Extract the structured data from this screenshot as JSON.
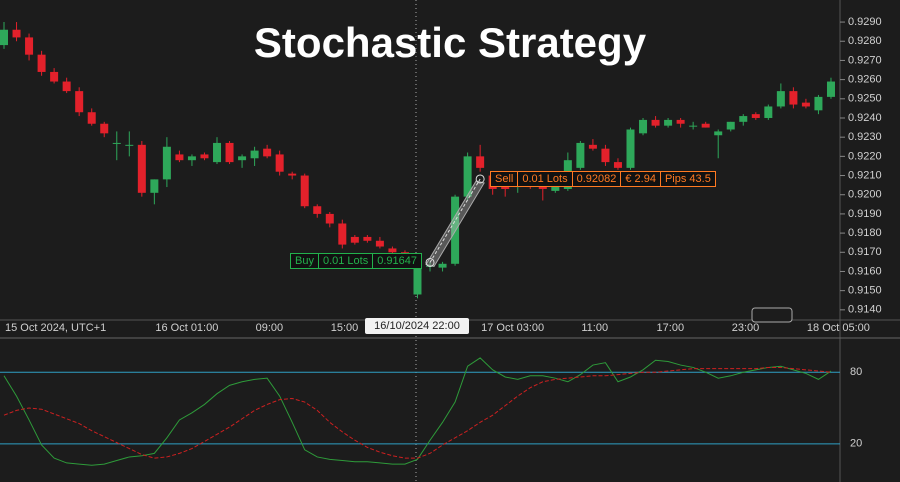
{
  "chart_data": [
    {
      "type": "candlestick",
      "title": "Stochastic Strategy",
      "categories": [
        "15 Oct 2024, UTC+1",
        null,
        null,
        null,
        null,
        null,
        null,
        null,
        null,
        null,
        null,
        null,
        "16 Oct 01:00",
        null,
        null,
        null,
        null,
        null,
        null,
        null,
        "09:00",
        null,
        null,
        null,
        null,
        null,
        "15:00",
        null,
        null,
        null,
        null,
        null,
        null,
        null,
        null,
        null,
        null,
        null,
        "17 Oct 03:00",
        null,
        null,
        null,
        null,
        null,
        null,
        null,
        "11:00",
        null,
        null,
        null,
        null,
        null,
        "17:00",
        null,
        null,
        null,
        null,
        null,
        "23:00",
        null,
        null,
        null,
        null,
        null,
        "18 Oct 05:00",
        null,
        null
      ],
      "open": [
        0.9278,
        0.9286,
        0.9282,
        0.9273,
        0.9264,
        0.9259,
        0.9254,
        0.9243,
        0.9237,
        0.9227,
        0.9226,
        0.9226,
        0.9201,
        0.9208,
        0.9221,
        0.9218,
        0.9221,
        0.9217,
        0.9227,
        0.9218,
        0.9219,
        0.9224,
        0.9221,
        0.9211,
        0.921,
        0.9194,
        0.919,
        0.9185,
        0.9178,
        0.9178,
        0.9176,
        0.9172,
        0.917,
        0.9148,
        0.9163,
        0.9162,
        0.9164,
        0.9199,
        0.922,
        0.921,
        0.9204,
        0.9204,
        0.9206,
        0.9206,
        0.9202,
        0.9203,
        0.9214,
        0.9226,
        0.9224,
        0.9217,
        0.9214,
        0.9232,
        0.9239,
        0.9236,
        0.9239,
        0.9236,
        0.9237,
        0.9231,
        0.9234,
        0.9238,
        0.9242,
        0.924,
        0.9246,
        0.9254,
        0.9248,
        0.9244,
        0.9251
      ],
      "high": [
        0.929,
        0.929,
        0.9284,
        0.9275,
        0.9266,
        0.9261,
        0.9256,
        0.9245,
        0.9238,
        0.9233,
        0.9233,
        0.9228,
        0.9208,
        0.923,
        0.9223,
        0.9221,
        0.9222,
        0.923,
        0.9228,
        0.9221,
        0.9225,
        0.9226,
        0.9223,
        0.9212,
        0.9211,
        0.9195,
        0.9191,
        0.9187,
        0.9179,
        0.9179,
        0.9178,
        0.9173,
        0.9171,
        0.9165,
        0.9165,
        0.9165,
        0.92,
        0.9222,
        0.9226,
        0.9212,
        0.9206,
        0.921,
        0.9208,
        0.921,
        0.9212,
        0.9222,
        0.9228,
        0.9229,
        0.9226,
        0.9219,
        0.9235,
        0.924,
        0.9241,
        0.924,
        0.924,
        0.9238,
        0.9238,
        0.9234,
        0.9238,
        0.9242,
        0.9243,
        0.9247,
        0.9258,
        0.9256,
        0.925,
        0.9252,
        0.9261
      ],
      "low": [
        0.9276,
        0.928,
        0.927,
        0.9262,
        0.9258,
        0.9253,
        0.9241,
        0.9236,
        0.923,
        0.9218,
        0.922,
        0.9199,
        0.9195,
        0.9204,
        0.9217,
        0.9215,
        0.9218,
        0.9216,
        0.9216,
        0.9214,
        0.9215,
        0.9219,
        0.921,
        0.9208,
        0.9193,
        0.9188,
        0.9183,
        0.9172,
        0.9174,
        0.9175,
        0.9172,
        0.9169,
        0.9167,
        0.9146,
        0.916,
        0.916,
        0.9163,
        0.9197,
        0.9212,
        0.92,
        0.9199,
        0.9201,
        0.9203,
        0.9197,
        0.9201,
        0.9202,
        0.9213,
        0.9223,
        0.9215,
        0.9213,
        0.9213,
        0.9231,
        0.9235,
        0.9235,
        0.9235,
        0.9234,
        0.9235,
        0.9219,
        0.9233,
        0.9236,
        0.9239,
        0.9239,
        0.9245,
        0.9245,
        0.9245,
        0.9242,
        0.925
      ],
      "close": [
        0.9286,
        0.9282,
        0.9273,
        0.9264,
        0.9259,
        0.9254,
        0.9243,
        0.9237,
        0.9232,
        0.9227,
        0.9226,
        0.9201,
        0.9208,
        0.9225,
        0.9218,
        0.922,
        0.9219,
        0.9227,
        0.9217,
        0.922,
        0.9223,
        0.922,
        0.9212,
        0.921,
        0.9194,
        0.919,
        0.9185,
        0.9174,
        0.9175,
        0.9176,
        0.9173,
        0.917,
        0.9168,
        0.9163,
        0.9163,
        0.9164,
        0.9199,
        0.922,
        0.9214,
        0.9203,
        0.9203,
        0.9206,
        0.9204,
        0.9203,
        0.921,
        0.9218,
        0.9227,
        0.9224,
        0.9217,
        0.9214,
        0.9234,
        0.9239,
        0.9236,
        0.9239,
        0.9237,
        0.9236,
        0.9235,
        0.9233,
        0.9238,
        0.9241,
        0.924,
        0.9246,
        0.9254,
        0.9247,
        0.9246,
        0.9251,
        0.9259
      ],
      "up_color": "#2ea85a",
      "down_color": "#e3212b",
      "ylim": [
        0.91347,
        0.93015
      ],
      "yticks": [
        {
          "value": 0.929,
          "label": "0.9290"
        },
        {
          "value": 0.928,
          "label": "0.9280"
        },
        {
          "value": 0.927,
          "label": "0.9270"
        },
        {
          "value": 0.926,
          "label": "0.9260"
        },
        {
          "value": 0.925,
          "label": "0.9250"
        },
        {
          "value": 0.924,
          "label": "0.9240"
        },
        {
          "value": 0.923,
          "label": "0.9230"
        },
        {
          "value": 0.922,
          "label": "0.9220"
        },
        {
          "value": 0.921,
          "label": "0.9210"
        },
        {
          "value": 0.92,
          "label": "0.9200"
        },
        {
          "value": 0.919,
          "label": "0.9190"
        },
        {
          "value": 0.918,
          "label": "0.9180"
        },
        {
          "value": 0.917,
          "label": "0.9170"
        },
        {
          "value": 0.916,
          "label": "0.9160"
        },
        {
          "value": 0.915,
          "label": "0.9150"
        },
        {
          "value": 0.914,
          "label": "0.9140"
        }
      ],
      "crosshair_label": "16/10/2024 22:00",
      "trades": [
        {
          "side": "Buy",
          "lots": "0.01 Lots",
          "price": 0.91647,
          "color": "#22b14c"
        },
        {
          "side": "Sell",
          "lots": "0.01 Lots",
          "price": 0.92082,
          "profit": "€ 2.94",
          "pips": "Pips 43.5",
          "color": "#ff7a22"
        }
      ]
    },
    {
      "type": "line",
      "ylim": [
        -12,
        107
      ],
      "yticks": [
        80,
        20
      ],
      "level_color": "#2e9fc4",
      "series": [
        {
          "color": "#2e9b3a",
          "dash": false,
          "values": [
            77,
            60,
            40,
            19,
            8,
            4,
            3,
            2,
            3,
            6,
            9,
            10,
            12,
            25,
            40,
            46,
            53,
            62,
            69,
            72,
            74,
            75,
            60,
            38,
            15,
            9,
            7,
            6,
            5,
            5,
            4,
            3,
            3,
            7,
            23,
            38,
            55,
            85,
            92,
            82,
            76,
            74,
            77,
            77,
            75,
            72,
            78,
            86,
            88,
            72,
            76,
            82,
            90,
            89,
            86,
            84,
            80,
            75,
            77,
            80,
            82,
            84,
            85,
            82,
            79,
            74,
            81
          ]
        },
        {
          "color": "#cc2020",
          "dash": true,
          "values": [
            44,
            48,
            50,
            49,
            45,
            41,
            37,
            31,
            26,
            21,
            16,
            11,
            8,
            9,
            12,
            16,
            22,
            28,
            34,
            41,
            48,
            53,
            57,
            58,
            55,
            48,
            38,
            30,
            23,
            17,
            13,
            10,
            8,
            8,
            12,
            19,
            25,
            31,
            38,
            44,
            52,
            60,
            67,
            72,
            74,
            75,
            76,
            77,
            77,
            78,
            79,
            80,
            80,
            81,
            82,
            83,
            83,
            83,
            83,
            83,
            83,
            84,
            84,
            83,
            82,
            81,
            80
          ]
        }
      ]
    }
  ]
}
